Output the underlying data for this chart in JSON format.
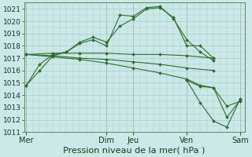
{
  "background_color": "#cce8e8",
  "grid_color": "#a8cccc",
  "line_color": "#2d6e2d",
  "marker_color": "#2d6e2d",
  "xlabel": "Pression niveau de la mer( hPa )",
  "ylim": [
    1011,
    1021.5
  ],
  "yticks": [
    1011,
    1012,
    1013,
    1014,
    1015,
    1016,
    1017,
    1018,
    1019,
    1020,
    1021
  ],
  "xtick_labels": [
    "Mer",
    "Dim",
    "Jeu",
    "Ven",
    "Sam"
  ],
  "xtick_positions": [
    0,
    72,
    96,
    144,
    192
  ],
  "xlim": [
    -2,
    196
  ],
  "series": [
    {
      "x": [
        0,
        12,
        24,
        36,
        48,
        60,
        72,
        84,
        96,
        108,
        120,
        132,
        144,
        156,
        168
      ],
      "y": [
        1014.8,
        1016.0,
        1017.2,
        1017.5,
        1018.3,
        1018.7,
        1018.3,
        1019.6,
        1020.2,
        1021.0,
        1021.1,
        1020.3,
        1018.0,
        1018.0,
        1017.0
      ]
    },
    {
      "x": [
        0,
        12,
        24,
        36,
        48,
        60,
        72,
        84,
        96,
        108,
        120,
        132,
        144,
        156,
        168
      ],
      "y": [
        1014.8,
        1016.5,
        1017.3,
        1017.5,
        1018.2,
        1018.5,
        1018.0,
        1020.5,
        1020.4,
        1021.1,
        1021.2,
        1020.2,
        1018.5,
        1017.5,
        1016.8
      ]
    },
    {
      "x": [
        0,
        24,
        48,
        72,
        96,
        120,
        144,
        168
      ],
      "y": [
        1017.3,
        1017.4,
        1017.4,
        1017.4,
        1017.3,
        1017.3,
        1017.2,
        1017.0
      ]
    },
    {
      "x": [
        0,
        24,
        48,
        72,
        96,
        120,
        144,
        168
      ],
      "y": [
        1017.3,
        1017.2,
        1017.0,
        1016.9,
        1016.7,
        1016.5,
        1016.2,
        1016.0
      ]
    },
    {
      "x": [
        0,
        24,
        48,
        72,
        96,
        120,
        144,
        156,
        168,
        180,
        192
      ],
      "y": [
        1017.3,
        1017.1,
        1016.9,
        1016.6,
        1016.2,
        1015.8,
        1015.3,
        1014.8,
        1014.6,
        1013.1,
        1013.5
      ]
    },
    {
      "x": [
        144,
        156,
        168,
        180,
        192
      ],
      "y": [
        1015.2,
        1014.7,
        1014.6,
        1012.2,
        1013.6
      ]
    },
    {
      "x": [
        144,
        156,
        168,
        180,
        192
      ],
      "y": [
        1015.2,
        1013.4,
        1011.9,
        1011.4,
        1013.7
      ]
    }
  ],
  "vline_positions": [
    0,
    72,
    96,
    144,
    192
  ],
  "xlabel_fontsize": 8,
  "ytick_fontsize": 6.5,
  "xtick_fontsize": 7
}
